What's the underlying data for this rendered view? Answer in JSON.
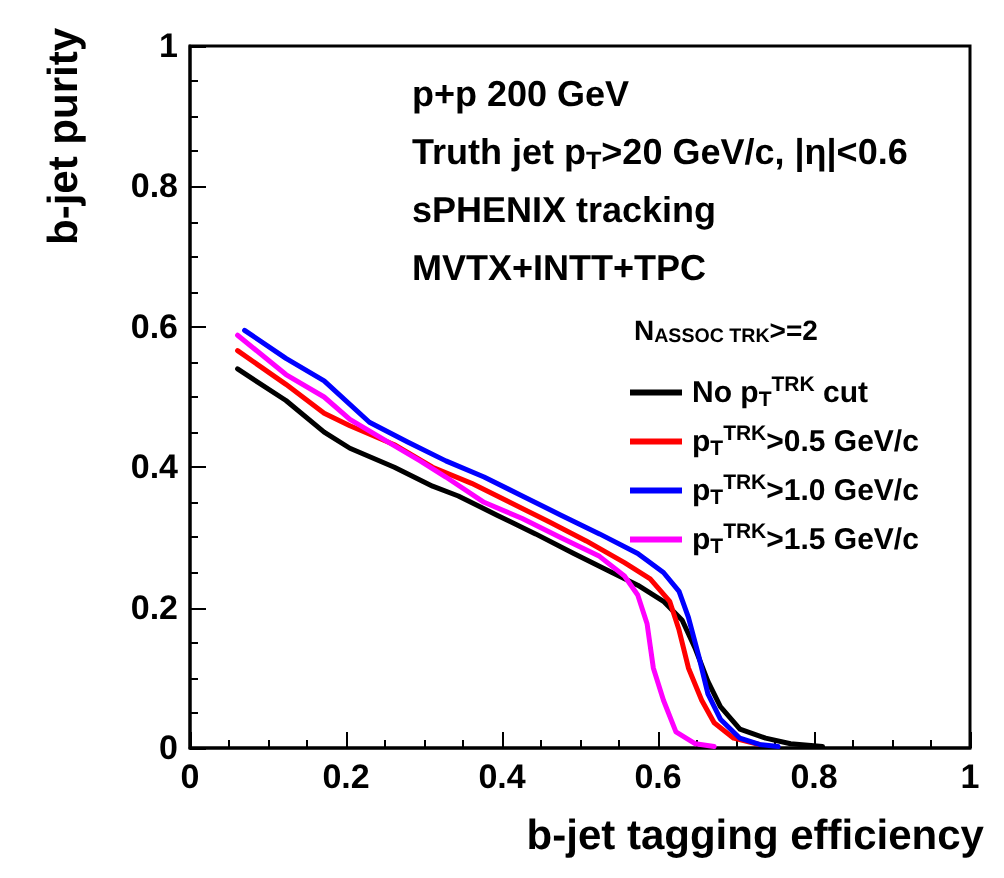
{
  "chart_data": {
    "type": "line",
    "xlabel": "b-jet tagging efficiency",
    "ylabel": "b-jet purity",
    "legend_title": "N$_{ASSOC TRK}$>=2",
    "legend": "right",
    "grid": false,
    "marker": "none",
    "line_style": "solid",
    "xlim": [
      0,
      1
    ],
    "ylim": [
      0,
      1
    ],
    "xticks": [
      0,
      0.2,
      0.4,
      0.6,
      0.8,
      1
    ],
    "yticks": [
      0,
      0.2,
      0.4,
      0.6,
      0.8,
      1
    ],
    "annotations": [
      "p+p 200 GeV",
      "Truth jet p$_{T}$>20 GeV/c, |η|<0.6",
      "sPHENIX tracking",
      "MVTX+INTT+TPC"
    ],
    "series": [
      {
        "name": "No p$_{T}$$^{TRK}$ cut",
        "color": "#000000",
        "x": [
          0.061,
          0.123,
          0.172,
          0.205,
          0.262,
          0.311,
          0.344,
          0.393,
          0.443,
          0.492,
          0.541,
          0.574,
          0.607,
          0.631,
          0.648,
          0.664,
          0.68,
          0.705,
          0.738,
          0.77,
          0.811
        ],
        "values": [
          0.54,
          0.495,
          0.45,
          0.427,
          0.4,
          0.373,
          0.359,
          0.332,
          0.305,
          0.277,
          0.25,
          0.232,
          0.209,
          0.182,
          0.141,
          0.095,
          0.059,
          0.027,
          0.014,
          0.006,
          0.002
        ]
      },
      {
        "name": "p$_{T}$$^{TRK}$>0.5 GeV/c",
        "color": "#ff0000",
        "x": [
          0.061,
          0.123,
          0.172,
          0.205,
          0.262,
          0.311,
          0.361,
          0.41,
          0.459,
          0.508,
          0.557,
          0.59,
          0.615,
          0.627,
          0.639,
          0.656,
          0.672,
          0.697,
          0.73
        ],
        "values": [
          0.566,
          0.518,
          0.477,
          0.459,
          0.432,
          0.4,
          0.377,
          0.35,
          0.323,
          0.295,
          0.264,
          0.241,
          0.209,
          0.168,
          0.114,
          0.068,
          0.036,
          0.014,
          0.005
        ]
      },
      {
        "name": "p$_{T}$$^{TRK}$>1.0 GeV/c",
        "color": "#0000ff",
        "x": [
          0.07,
          0.123,
          0.172,
          0.23,
          0.279,
          0.328,
          0.377,
          0.426,
          0.475,
          0.525,
          0.574,
          0.607,
          0.627,
          0.639,
          0.652,
          0.664,
          0.68,
          0.705,
          0.73,
          0.754
        ],
        "values": [
          0.595,
          0.555,
          0.523,
          0.464,
          0.436,
          0.409,
          0.386,
          0.359,
          0.332,
          0.305,
          0.277,
          0.25,
          0.223,
          0.186,
          0.132,
          0.077,
          0.041,
          0.014,
          0.005,
          0.002
        ]
      },
      {
        "name": "p$_{T}$$^{TRK}$>1.5 GeV/c",
        "color": "#ff00ff",
        "x": [
          0.061,
          0.123,
          0.172,
          0.205,
          0.246,
          0.295,
          0.328,
          0.377,
          0.426,
          0.475,
          0.525,
          0.557,
          0.574,
          0.586,
          0.594,
          0.607,
          0.623,
          0.648,
          0.672
        ],
        "values": [
          0.588,
          0.532,
          0.5,
          0.468,
          0.441,
          0.409,
          0.386,
          0.35,
          0.327,
          0.3,
          0.273,
          0.245,
          0.218,
          0.177,
          0.114,
          0.068,
          0.023,
          0.006,
          0.002
        ]
      }
    ]
  }
}
